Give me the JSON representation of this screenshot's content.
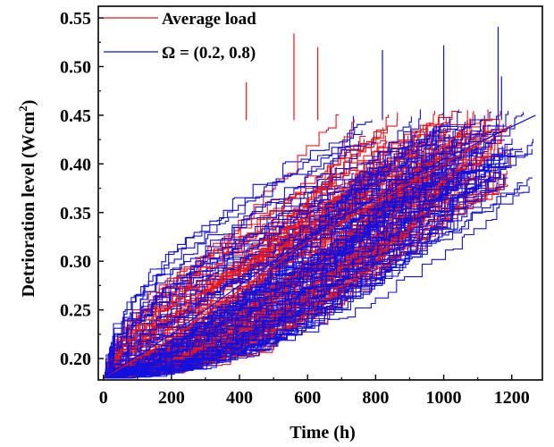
{
  "chart_data": {
    "type": "line",
    "title": "",
    "xlabel": "Time (h)",
    "ylabel_main": "Detrioration level (Wcm",
    "ylabel_sup": "2",
    "ylabel_tail": ")",
    "xlim": [
      -15,
      1290
    ],
    "ylim": [
      0.178,
      0.562
    ],
    "x_ticks": [
      0,
      200,
      400,
      600,
      800,
      1000,
      1200
    ],
    "x_tick_labels": [
      "0",
      "200",
      "400",
      "600",
      "800",
      "1000",
      "1200"
    ],
    "y_ticks": [
      0.2,
      0.25,
      0.3,
      0.35,
      0.4,
      0.45,
      0.5,
      0.55
    ],
    "y_tick_labels": [
      "0.20",
      "0.25",
      "0.30",
      "0.35",
      "0.40",
      "0.45",
      "0.50",
      "0.55"
    ],
    "grid": false,
    "legend_position": "top-left",
    "colors": {
      "average_load": "#e8141c",
      "omega": "#1010e0"
    },
    "series": [
      {
        "name": "Average load",
        "trajectory_count": 100,
        "start_level": 0.18,
        "end_level_range": [
          0.37,
          0.455
        ],
        "max_time": 1200,
        "representative": {
          "x": [
            0,
            200,
            400,
            600,
            800,
            1000,
            1200
          ],
          "y": [
            0.18,
            0.22,
            0.27,
            0.32,
            0.36,
            0.4,
            0.44
          ]
        },
        "spikes": [
          {
            "x": 420,
            "y": 0.484
          },
          {
            "x": 560,
            "y": 0.534
          },
          {
            "x": 630,
            "y": 0.52
          }
        ]
      },
      {
        "name": "Ω = (0.2, 0.8)",
        "trajectory_count": 100,
        "start_level": 0.18,
        "end_level_range": [
          0.375,
          0.455
        ],
        "max_time": 1270,
        "representative": {
          "x": [
            0,
            200,
            400,
            600,
            800,
            1000,
            1270
          ],
          "y": [
            0.18,
            0.225,
            0.275,
            0.325,
            0.365,
            0.405,
            0.45
          ]
        },
        "spikes": [
          {
            "x": 820,
            "y": 0.517
          },
          {
            "x": 1000,
            "y": 0.522
          },
          {
            "x": 1160,
            "y": 0.541
          },
          {
            "x": 1170,
            "y": 0.49
          }
        ]
      }
    ]
  }
}
